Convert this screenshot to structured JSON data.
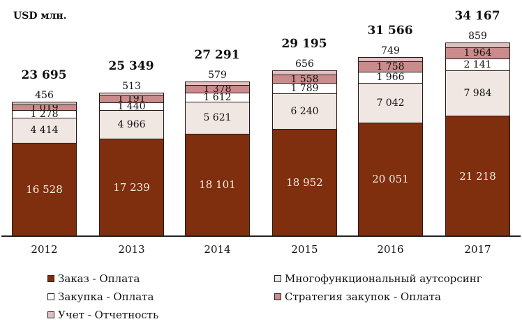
{
  "chart_data": {
    "type": "bar",
    "stacked": true,
    "title": "",
    "unit_label": "USD млн.",
    "xlabel": "",
    "ylabel": "USD млн.",
    "categories": [
      "2012",
      "2013",
      "2014",
      "2015",
      "2016",
      "2017"
    ],
    "totals": [
      23695,
      25349,
      27291,
      29195,
      31566,
      34167
    ],
    "totals_labels": [
      "23 695",
      "25 349",
      "27 291",
      "29 195",
      "31 566",
      "34 167"
    ],
    "series": [
      {
        "name": "Заказ - Оплата",
        "color": "#7f2e0e",
        "text_color": "#f4eee8",
        "values": [
          16528,
          17239,
          18101,
          18952,
          20051,
          21218
        ],
        "labels": [
          "16 528",
          "17 239",
          "18 101",
          "18 952",
          "20 051",
          "21 218"
        ]
      },
      {
        "name": "Многофункциональный аутсорсинг",
        "color": "#f0e6e2",
        "text_color": "#111",
        "values": [
          4414,
          4966,
          5621,
          6240,
          7042,
          7984
        ],
        "labels": [
          "4 414",
          "4 966",
          "5 621",
          "6 240",
          "7 042",
          "7 984"
        ]
      },
      {
        "name": "Закупка - Оплата",
        "color": "#ffffff",
        "text_color": "#111",
        "values": [
          1278,
          1440,
          1612,
          1789,
          1966,
          2141
        ],
        "labels": [
          "1 278",
          "1 440",
          "1 612",
          "1 789",
          "1 966",
          "2 141"
        ]
      },
      {
        "name": "Стратегия закупок - Оплата",
        "color": "#c98b8b",
        "text_color": "#111",
        "values": [
          1019,
          1191,
          1378,
          1558,
          1758,
          1964
        ],
        "labels": [
          "1 019",
          "1 191",
          "1 378",
          "1 558",
          "1 758",
          "1 964"
        ]
      },
      {
        "name": "Учет - Отчетность",
        "color": "#dfc0c0",
        "text_color": "#111",
        "values": [
          456,
          513,
          579,
          656,
          749,
          859
        ],
        "labels": [
          "456",
          "513",
          "579",
          "656",
          "749",
          "859"
        ]
      }
    ],
    "legend_position": "bottom",
    "grid": false
  },
  "legend": [
    {
      "label": "Заказ - Оплата",
      "color": "#7f2e0e"
    },
    {
      "label": "Многофункциональный аутсорсинг",
      "color": "#f0e6e2"
    },
    {
      "label": "Закупка - Оплата",
      "color": "#ffffff"
    },
    {
      "label": "Стратегия закупок - Оплата",
      "color": "#c98b8b"
    },
    {
      "label": "Учет - Отчетность",
      "color": "#dfc0c0"
    }
  ]
}
